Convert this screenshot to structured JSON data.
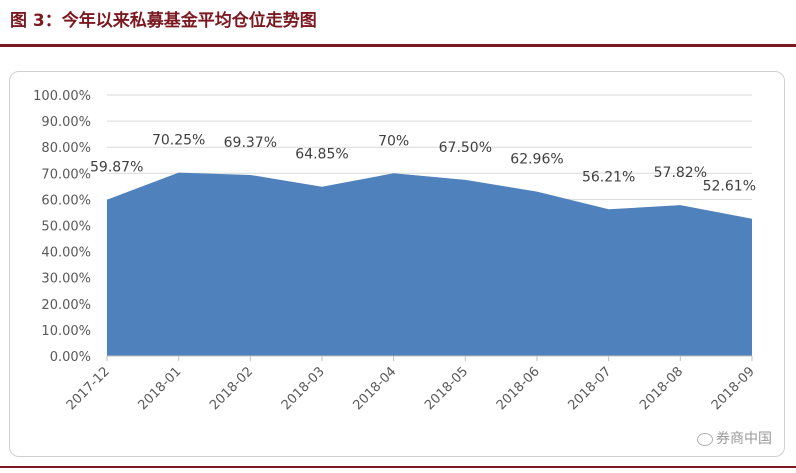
{
  "figure": {
    "title": "图 3：今年以来私募基金平均仓位走势图",
    "watermark": "券商中国",
    "watermark_icon": "wechat-icon"
  },
  "chart_data": {
    "type": "area",
    "title": "",
    "xlabel": "",
    "ylabel": "",
    "categories": [
      "2017-12",
      "2018-01",
      "2018-02",
      "2018-03",
      "2018-04",
      "2018-05",
      "2018-06",
      "2018-07",
      "2018-08",
      "2018-09"
    ],
    "series": [
      {
        "values": [
          59.87,
          70.25,
          69.37,
          64.85,
          70,
          67.5,
          62.96,
          56.21,
          57.82,
          52.61
        ],
        "data_labels": [
          "59.87%",
          "70.25%",
          "69.37%",
          "64.85%",
          "70%",
          "67.50%",
          "62.96%",
          "56.21%",
          "57.82%",
          "52.61%"
        ],
        "color": "#4f81bd"
      }
    ],
    "ylim": [
      0,
      100
    ],
    "yticks": [
      "0.00%",
      "10.00%",
      "20.00%",
      "30.00%",
      "40.00%",
      "50.00%",
      "60.00%",
      "70.00%",
      "80.00%",
      "90.00%",
      "100.00%"
    ],
    "grid": true,
    "legend": "none"
  }
}
